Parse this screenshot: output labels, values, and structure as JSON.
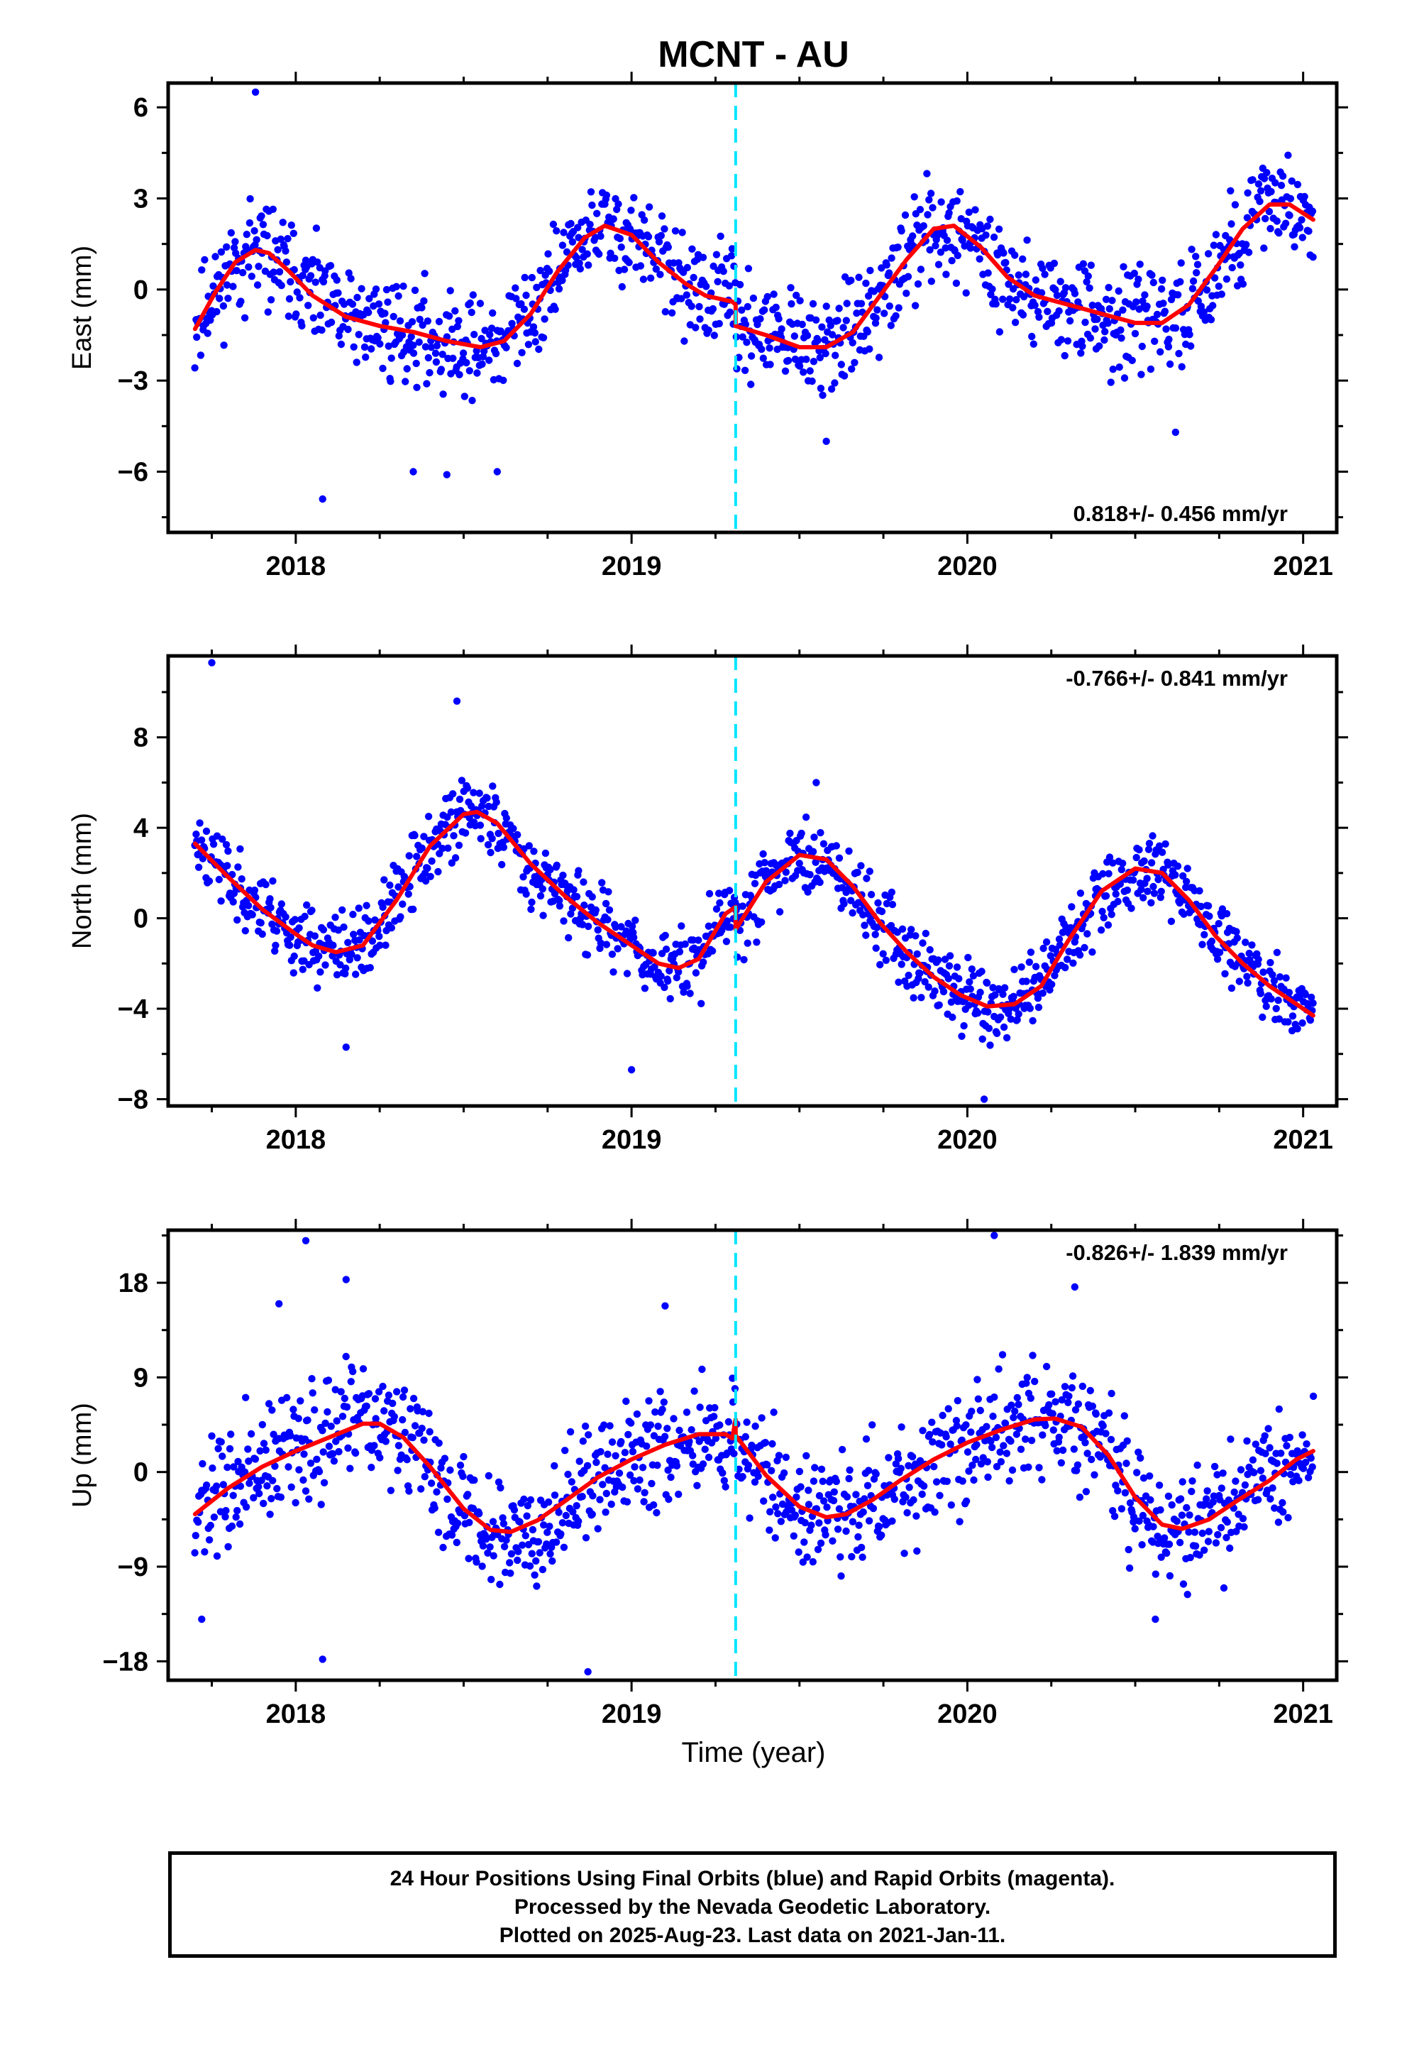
{
  "title": "MCNT - AU",
  "xlabel": "Time (year)",
  "footer": {
    "line1": "24 Hour Positions Using Final Orbits (blue) and Rapid Orbits (magenta).",
    "line2": "Processed by the Nevada Geodetic Laboratory.",
    "line3": "Plotted on 2025-Aug-23. Last data on 2021-Jan-11."
  },
  "colors": {
    "points": "#0000ff",
    "model": "#ff0000",
    "event": "#00e5ff",
    "frame": "#000000"
  },
  "chart_data": [
    {
      "type": "scatter",
      "name": "east",
      "ylabel": "East (mm)",
      "rate_label": "0.818+/- 0.456 mm/yr",
      "rate_position": "bottom-right",
      "xlim": [
        2017.62,
        2021.1
      ],
      "ylim": [
        -8,
        6.8
      ],
      "yticks": [
        -6,
        -3,
        0,
        3,
        6
      ],
      "xticks": [
        2018,
        2019,
        2020,
        2021
      ],
      "event_x": 2019.31,
      "model": {
        "x": [
          2017.7,
          2017.76,
          2017.82,
          2017.88,
          2017.92,
          2017.98,
          2018.05,
          2018.15,
          2018.25,
          2018.35,
          2018.45,
          2018.55,
          2018.62,
          2018.7,
          2018.78,
          2018.86,
          2018.92,
          2019.0,
          2019.08,
          2019.16,
          2019.22,
          2019.3,
          2019.31,
          2019.31,
          2019.4,
          2019.5,
          2019.58,
          2019.66,
          2019.74,
          2019.82,
          2019.9,
          2019.96,
          2020.04,
          2020.12,
          2020.2,
          2020.3,
          2020.4,
          2020.5,
          2020.58,
          2020.66,
          2020.74,
          2020.82,
          2020.9,
          2020.96,
          2021.03
        ],
        "y": [
          -1.3,
          -0.1,
          0.9,
          1.3,
          1.2,
          0.6,
          -0.2,
          -0.9,
          -1.2,
          -1.4,
          -1.7,
          -1.9,
          -1.7,
          -0.8,
          0.6,
          1.7,
          2.1,
          1.8,
          0.9,
          0.2,
          -0.2,
          -0.4,
          -0.5,
          -1.2,
          -1.5,
          -1.9,
          -1.9,
          -1.4,
          -0.2,
          1.0,
          2.0,
          2.1,
          1.4,
          0.4,
          -0.2,
          -0.5,
          -0.8,
          -1.1,
          -1.1,
          -0.5,
          0.7,
          2.0,
          2.8,
          2.8,
          2.3
        ]
      },
      "points_seed": 11,
      "points_noise": 1.15,
      "outliers": [
        [
          2017.88,
          6.5
        ],
        [
          2018.08,
          -6.9
        ],
        [
          2018.35,
          -6.0
        ],
        [
          2018.45,
          -6.1
        ],
        [
          2018.6,
          -6.0
        ],
        [
          2019.58,
          -5.0
        ],
        [
          2020.62,
          -4.7
        ]
      ]
    },
    {
      "type": "scatter",
      "name": "north",
      "ylabel": "North (mm)",
      "rate_label": "-0.766+/- 0.841 mm/yr",
      "rate_position": "top-right",
      "xlim": [
        2017.62,
        2021.1
      ],
      "ylim": [
        -8.3,
        11.6
      ],
      "yticks": [
        -8,
        -4,
        0,
        4,
        8
      ],
      "xticks": [
        2018,
        2019,
        2020,
        2021
      ],
      "event_x": 2019.31,
      "model": {
        "x": [
          2017.7,
          2017.8,
          2017.9,
          2018.0,
          2018.05,
          2018.12,
          2018.2,
          2018.3,
          2018.4,
          2018.5,
          2018.54,
          2018.6,
          2018.7,
          2018.8,
          2018.9,
          2019.0,
          2019.08,
          2019.14,
          2019.2,
          2019.28,
          2019.31,
          2019.31,
          2019.4,
          2019.5,
          2019.58,
          2019.66,
          2019.74,
          2019.82,
          2019.9,
          2019.98,
          2020.06,
          2020.14,
          2020.22,
          2020.3,
          2020.4,
          2020.5,
          2020.58,
          2020.66,
          2020.74,
          2020.82,
          2020.9,
          2020.98,
          2021.03
        ],
        "y": [
          3.3,
          1.8,
          0.4,
          -0.7,
          -1.2,
          -1.5,
          -1.2,
          0.8,
          3.2,
          4.6,
          4.7,
          4.2,
          2.4,
          1.0,
          -0.2,
          -1.2,
          -2.0,
          -2.2,
          -1.8,
          0.2,
          0.5,
          -0.5,
          1.6,
          2.8,
          2.6,
          1.4,
          -0.2,
          -1.5,
          -2.6,
          -3.4,
          -3.9,
          -3.8,
          -3.0,
          -1.0,
          1.2,
          2.2,
          2.0,
          0.8,
          -0.8,
          -2.0,
          -3.0,
          -3.8,
          -4.3
        ]
      },
      "points_seed": 23,
      "points_noise": 1.15,
      "outliers": [
        [
          2017.75,
          11.3
        ],
        [
          2018.48,
          9.6
        ],
        [
          2018.15,
          -5.7
        ],
        [
          2019.0,
          -6.7
        ],
        [
          2020.05,
          -8.0
        ],
        [
          2019.55,
          6.0
        ]
      ]
    },
    {
      "type": "scatter",
      "name": "up",
      "ylabel": "Up (mm)",
      "rate_label": "-0.826+/- 1.839 mm/yr",
      "rate_position": "top-right",
      "xlim": [
        2017.62,
        2021.1
      ],
      "ylim": [
        -19.8,
        23.0
      ],
      "yticks": [
        -18,
        -9,
        0,
        9,
        18
      ],
      "xticks": [
        2018,
        2019,
        2020,
        2021
      ],
      "event_x": 2019.31,
      "model": {
        "x": [
          2017.7,
          2017.8,
          2017.9,
          2018.0,
          2018.1,
          2018.2,
          2018.25,
          2018.32,
          2018.4,
          2018.5,
          2018.58,
          2018.64,
          2018.72,
          2018.8,
          2018.9,
          2019.0,
          2019.1,
          2019.2,
          2019.28,
          2019.3,
          2019.31,
          2019.31,
          2019.4,
          2019.5,
          2019.58,
          2019.64,
          2019.72,
          2019.8,
          2019.9,
          2020.0,
          2020.1,
          2020.2,
          2020.26,
          2020.34,
          2020.42,
          2020.5,
          2020.58,
          2020.64,
          2020.72,
          2020.8,
          2020.9,
          2020.98,
          2021.03
        ],
        "y": [
          -4.0,
          -1.5,
          0.5,
          2.0,
          3.3,
          4.6,
          4.6,
          3.3,
          0.5,
          -3.5,
          -5.5,
          -5.7,
          -4.6,
          -2.8,
          -0.5,
          1.2,
          2.6,
          3.6,
          3.6,
          3.2,
          5.0,
          3.5,
          -0.3,
          -3.3,
          -4.3,
          -4.0,
          -2.6,
          -0.8,
          1.2,
          2.8,
          4.0,
          5.0,
          5.1,
          4.3,
          1.6,
          -2.4,
          -5.0,
          -5.4,
          -4.5,
          -2.8,
          -0.8,
          1.2,
          2.0
        ]
      },
      "points_seed": 37,
      "points_noise": 3.9,
      "outliers": [
        [
          2018.03,
          22.0
        ],
        [
          2018.15,
          18.3
        ],
        [
          2020.08,
          22.5
        ],
        [
          2019.1,
          15.8
        ],
        [
          2020.32,
          17.6
        ],
        [
          2017.95,
          16.0
        ],
        [
          2018.08,
          -17.8
        ],
        [
          2018.87,
          -19.0
        ],
        [
          2020.56,
          -14.0
        ],
        [
          2017.72,
          -14.0
        ]
      ]
    }
  ]
}
